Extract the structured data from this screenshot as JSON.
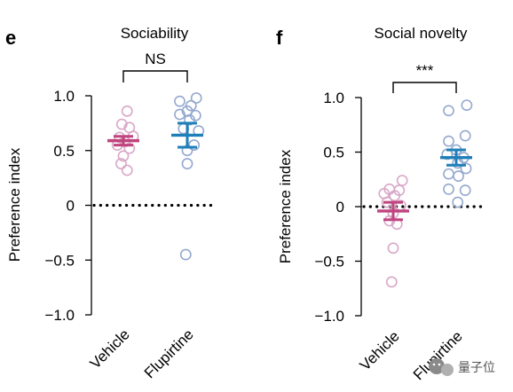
{
  "colors": {
    "vehicle_points": "#d8a8c8",
    "vehicle_mean": "#c0447e",
    "flupirtine_points": "#95a9cf",
    "flupirtine_mean": "#1f7fb8",
    "axis": "#000000",
    "watermark": "#555555"
  },
  "watermark": {
    "text": "量子位",
    "icon": "wechat-logo-icon"
  },
  "chart_data": [
    {
      "panel": "e",
      "type": "scatter",
      "title": "Sociability",
      "ylabel": "Preference index",
      "ylim": [
        -1.0,
        1.0
      ],
      "yticks": [
        {
          "value": 1.0,
          "label": "1.0"
        },
        {
          "value": 0.5,
          "label": "0.5"
        },
        {
          "value": 0,
          "label": "0"
        },
        {
          "value": -0.5,
          "label": "−0.5"
        },
        {
          "value": -1.0,
          "label": "−1.0"
        }
      ],
      "reference_line": 0,
      "categories": [
        "Vehicle",
        "Flupirtine"
      ],
      "significance": "NS",
      "series": [
        {
          "points": [
            {
              "x": 0.05,
              "y": 0.86
            },
            {
              "x": -0.02,
              "y": 0.74
            },
            {
              "x": 0.08,
              "y": 0.71
            },
            {
              "x": 0.13,
              "y": 0.63
            },
            {
              "x": -0.05,
              "y": 0.62
            },
            {
              "x": 0.02,
              "y": 0.58
            },
            {
              "x": -0.08,
              "y": 0.55
            },
            {
              "x": 0.08,
              "y": 0.52
            },
            {
              "x": 0.0,
              "y": 0.45
            },
            {
              "x": -0.03,
              "y": 0.38
            },
            {
              "x": 0.05,
              "y": 0.32
            }
          ],
          "mean": 0.59,
          "sem": 0.04
        },
        {
          "points": [
            {
              "x": 0.12,
              "y": 0.98
            },
            {
              "x": -0.1,
              "y": 0.95
            },
            {
              "x": 0.05,
              "y": 0.91
            },
            {
              "x": 0.0,
              "y": 0.86
            },
            {
              "x": -0.1,
              "y": 0.83
            },
            {
              "x": 0.11,
              "y": 0.82
            },
            {
              "x": 0.03,
              "y": 0.78
            },
            {
              "x": -0.05,
              "y": 0.7
            },
            {
              "x": 0.15,
              "y": 0.68
            },
            {
              "x": 0.09,
              "y": 0.55
            },
            {
              "x": 0.0,
              "y": 0.5
            },
            {
              "x": 0.0,
              "y": 0.38
            },
            {
              "x": -0.02,
              "y": -0.45
            }
          ],
          "mean": 0.64,
          "sem": 0.11
        }
      ]
    },
    {
      "panel": "f",
      "type": "scatter",
      "title": "Social novelty",
      "ylabel": "Preference index",
      "ylim": [
        -1.0,
        1.0
      ],
      "yticks": [
        {
          "value": 1.0,
          "label": "1.0"
        },
        {
          "value": 0.5,
          "label": "0.5"
        },
        {
          "value": 0,
          "label": "0"
        },
        {
          "value": -0.5,
          "label": "−0.5"
        },
        {
          "value": -1.0,
          "label": "−1.0"
        }
      ],
      "reference_line": 0,
      "categories": [
        "Vehicle",
        "Flupirtine"
      ],
      "significance": "***",
      "series": [
        {
          "points": [
            {
              "x": 0.12,
              "y": 0.24
            },
            {
              "x": -0.05,
              "y": 0.16
            },
            {
              "x": 0.08,
              "y": 0.15
            },
            {
              "x": -0.12,
              "y": 0.12
            },
            {
              "x": 0.02,
              "y": 0.1
            },
            {
              "x": -0.08,
              "y": 0.04
            },
            {
              "x": 0.1,
              "y": 0.01
            },
            {
              "x": 0.0,
              "y": -0.06
            },
            {
              "x": -0.05,
              "y": -0.13
            },
            {
              "x": 0.05,
              "y": -0.16
            },
            {
              "x": 0.0,
              "y": -0.38
            },
            {
              "x": -0.02,
              "y": -0.69
            }
          ],
          "mean": -0.04,
          "sem": 0.08
        },
        {
          "points": [
            {
              "x": 0.14,
              "y": 0.93
            },
            {
              "x": -0.1,
              "y": 0.88
            },
            {
              "x": 0.12,
              "y": 0.65
            },
            {
              "x": -0.1,
              "y": 0.6
            },
            {
              "x": 0.0,
              "y": 0.52
            },
            {
              "x": -0.12,
              "y": 0.48
            },
            {
              "x": 0.1,
              "y": 0.45
            },
            {
              "x": 0.02,
              "y": 0.4
            },
            {
              "x": 0.13,
              "y": 0.35
            },
            {
              "x": -0.1,
              "y": 0.3
            },
            {
              "x": 0.03,
              "y": 0.28
            },
            {
              "x": 0.12,
              "y": 0.15
            },
            {
              "x": -0.1,
              "y": 0.16
            },
            {
              "x": 0.02,
              "y": 0.04
            }
          ],
          "mean": 0.45,
          "sem": 0.07
        }
      ]
    }
  ]
}
